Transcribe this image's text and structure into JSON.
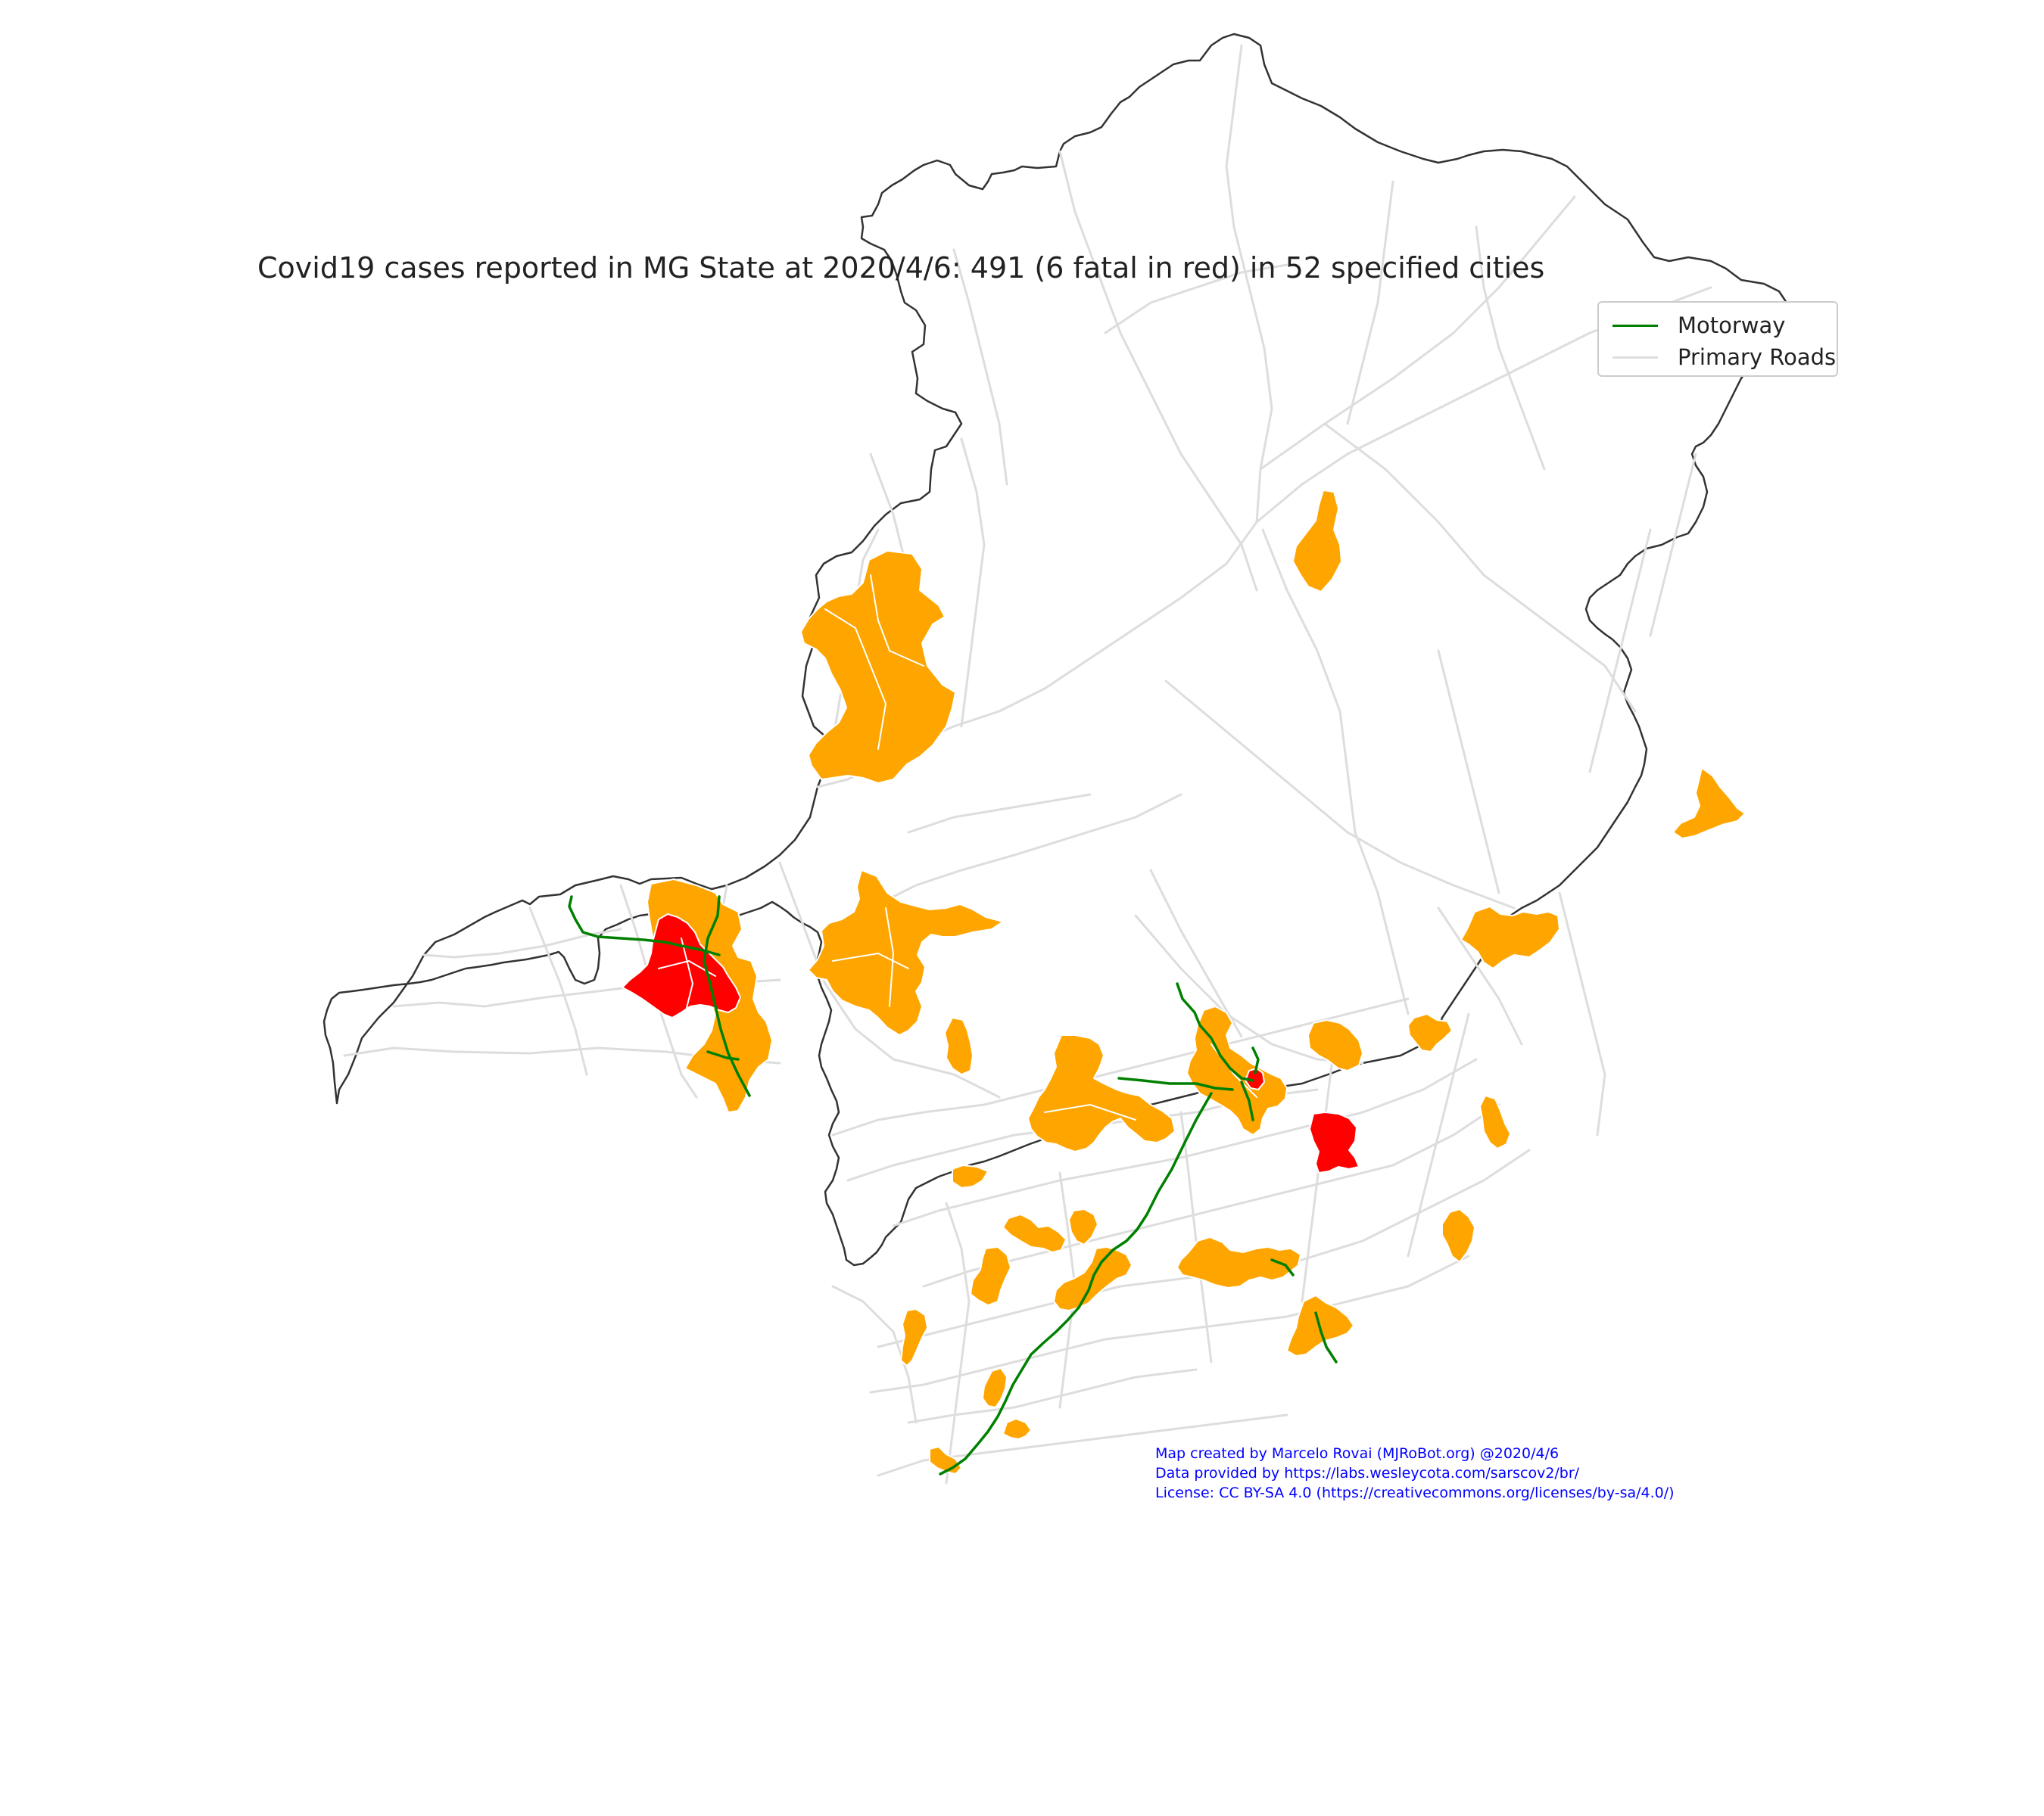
{
  "map": {
    "title": "Covid19 cases reported in MG State at 2020/4/6: 491 (6 fatal in red) in 52 specified cities",
    "legend": {
      "items": [
        {
          "label": "Motorway",
          "color": "#008000"
        },
        {
          "label": "Primary Roads",
          "color": "#dddddd"
        }
      ]
    },
    "credits": {
      "line1": "Map created by Marcelo Rovai (MJRoBot.org) @2020/4/6",
      "line2": "Data provided by https://labs.wesleycota.com/sarscov2/br/",
      "line3": "License: CC BY-SA 4.0 (https://creativecommons.org/licenses/by-sa/4.0/)"
    },
    "colors": {
      "state_outline": "#333333",
      "cases_fill": "#ffa500",
      "fatal_fill": "#ff0000",
      "motorway": "#008000",
      "primary_roads": "#dddddd"
    },
    "legend_swatch_colors": [
      "#008000",
      "#dddddd"
    ]
  }
}
